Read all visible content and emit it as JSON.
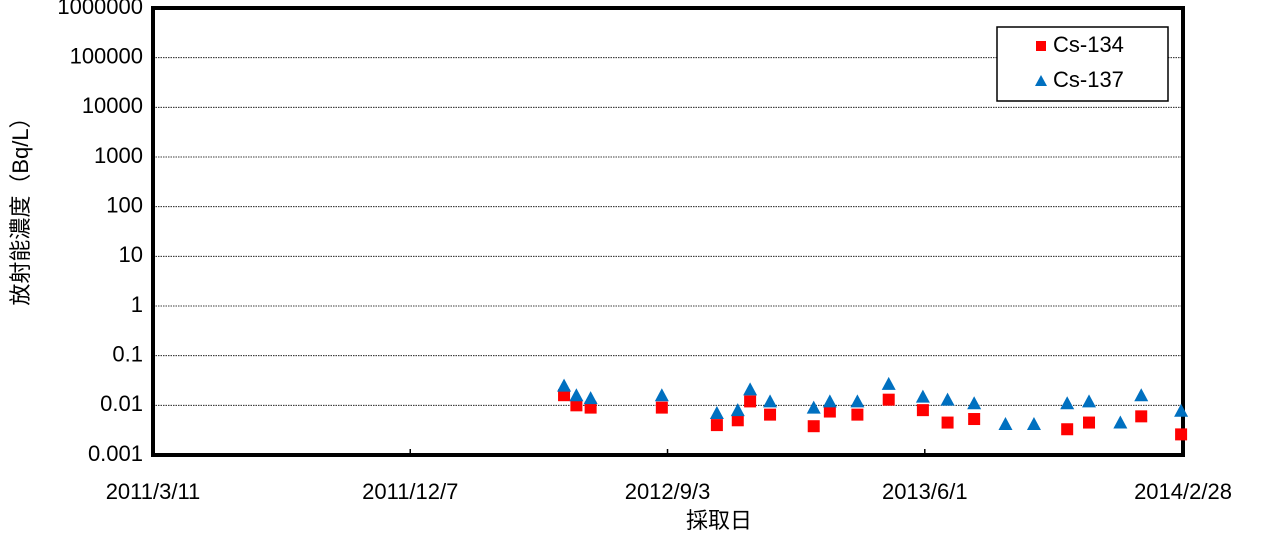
{
  "chart_data": {
    "type": "scatter",
    "x_label": "採取日",
    "y_label": "放射能濃度（Bq/L）",
    "x": [
      "2012/5/17",
      "2012/5/30",
      "2012/6/14",
      "2012/8/28",
      "2012/10/25",
      "2012/11/16",
      "2012/11/29",
      "2012/12/20",
      "2013/2/4",
      "2013/2/21",
      "2013/3/22",
      "2013/4/24",
      "2013/5/30",
      "2013/6/25",
      "2013/7/23",
      "2013/8/25",
      "2013/9/24",
      "2013/10/29",
      "2013/11/21",
      "2013/12/24",
      "2014/1/15",
      "2014/2/26"
    ],
    "series": [
      {
        "name": "Cs-134",
        "color": "#ff0000",
        "marker": "square",
        "values": [
          0.016,
          0.01,
          0.009,
          0.009,
          0.004,
          0.005,
          0.012,
          0.0065,
          0.0038,
          0.0075,
          0.0065,
          0.013,
          0.008,
          0.0045,
          0.0053,
          null,
          null,
          0.0033,
          0.0045,
          null,
          0.006,
          0.0026
        ]
      },
      {
        "name": "Cs-137",
        "color": "#0070c0",
        "marker": "triangle",
        "values": [
          0.025,
          0.016,
          0.014,
          0.016,
          0.007,
          0.008,
          0.021,
          0.012,
          0.009,
          0.012,
          0.012,
          0.027,
          0.015,
          0.013,
          0.011,
          0.0042,
          0.0042,
          0.011,
          0.012,
          0.0045,
          0.016,
          0.0078
        ]
      }
    ],
    "xlim": [
      "2011/3/11",
      "2014/2/28"
    ],
    "xticks": [
      "2011/3/11",
      "2011/12/7",
      "2012/9/3",
      "2013/6/1",
      "2014/2/28"
    ],
    "ylim": [
      0.001,
      1000000
    ],
    "yticks": [
      0.001,
      0.01,
      0.1,
      1,
      10,
      100,
      1000,
      10000,
      100000,
      1000000
    ],
    "log_y": true,
    "grid": true,
    "legend": "upper right"
  }
}
